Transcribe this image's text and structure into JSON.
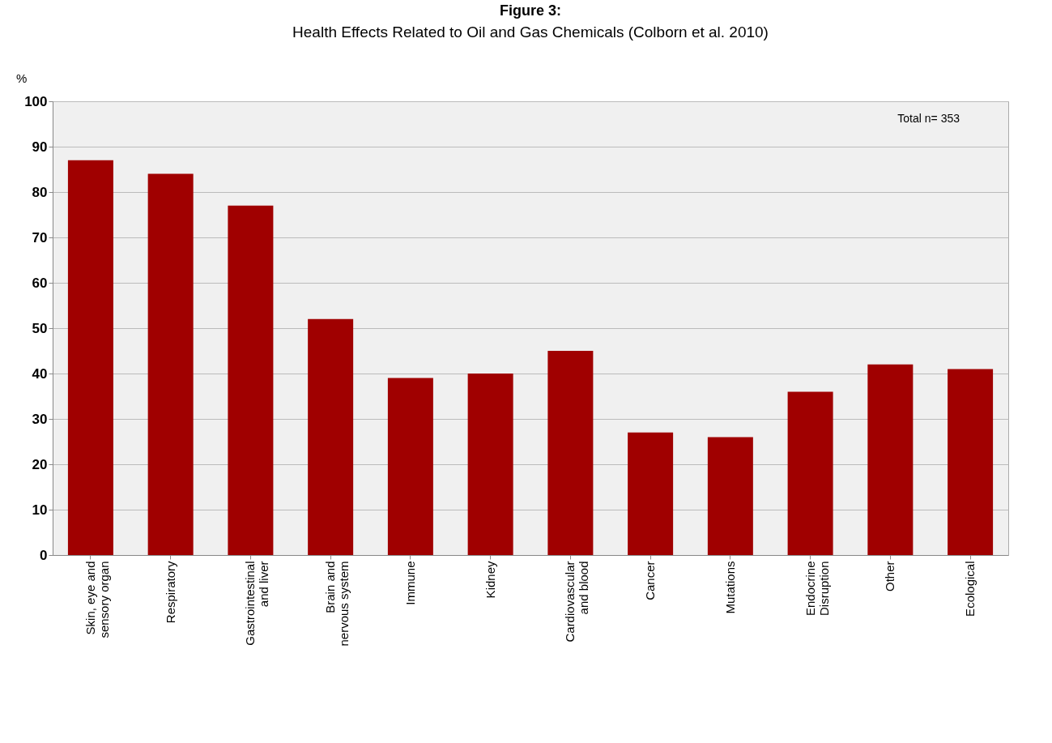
{
  "chart_data": {
    "type": "bar",
    "title": "Figure 3:",
    "subtitle": "Health Effects Related to Oil and Gas Chemicals (Colborn et al. 2010)",
    "ylabel": "%",
    "categories": [
      "Skin, eye and\nsensory organ",
      "Respiratory",
      "Gastrointestinal\nand liver",
      "Brain and\nnervous system",
      "Immune",
      "Kidney",
      "Cardiovascular\nand blood",
      "Cancer",
      "Mutations",
      "Endocrine\nDisruption",
      "Other",
      "Ecological"
    ],
    "values": [
      87,
      84,
      77,
      52,
      39,
      40,
      45,
      27,
      26,
      36,
      42,
      41
    ],
    "color": "#a00000",
    "ylim": [
      0,
      100
    ],
    "yticks": [
      0,
      10,
      20,
      30,
      40,
      50,
      60,
      70,
      80,
      90,
      100
    ],
    "grid": "y",
    "annotations": [
      "Total n= 353"
    ]
  }
}
